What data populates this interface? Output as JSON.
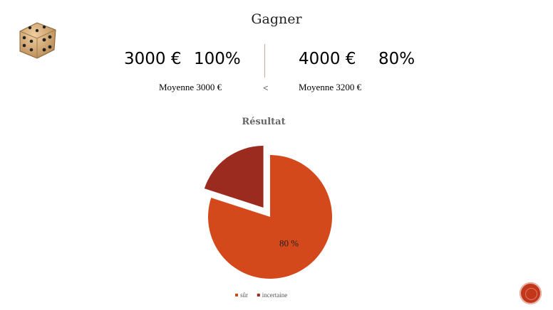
{
  "slide": {
    "title": "Gagner",
    "left_option": {
      "amount": "3000 €",
      "probability": "100%",
      "average": "Moyenne 3000 €"
    },
    "comparison": "<",
    "right_option": {
      "amount": "4000 €",
      "probability": "80%",
      "average": "Moyenne 3200 €"
    }
  },
  "chart_data": {
    "type": "pie",
    "title": "Résultat",
    "series": [
      {
        "name": "sûr",
        "value": 80,
        "color": "#d4491c"
      },
      {
        "name": "incertaine",
        "value": 20,
        "color": "#9b2b1e"
      }
    ],
    "data_labels": [
      "80 %",
      ""
    ],
    "exploded": "incertaine",
    "legend_position": "bottom"
  },
  "icons": {
    "dice": "dice-icon",
    "nav": "slide-nav-button"
  },
  "colors": {
    "accent": "#c3361a"
  }
}
